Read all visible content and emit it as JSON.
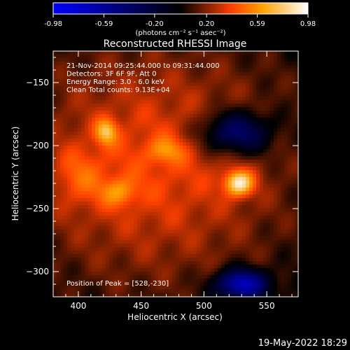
{
  "colorbar": {
    "ticks": [
      "-0.98",
      "-0.59",
      "-0.20",
      "0.20",
      "0.59",
      "0.98"
    ],
    "tick_values": [
      -0.98,
      -0.59,
      -0.2,
      0.2,
      0.59,
      0.98
    ],
    "range": [
      -0.98,
      0.98
    ],
    "unit_label": "(photons cm⁻² s⁻¹ asec⁻²)",
    "colors": [
      "#0000ff",
      "#000000",
      "#ff4000",
      "#ffa000",
      "#ffffff"
    ]
  },
  "chart_data": {
    "type": "heatmap",
    "title": "Reconstructed RHESSI Image",
    "xlabel": "Heliocentric X (arcsec)",
    "ylabel": "Heliocentric Y (arcsec)",
    "xlim": [
      380,
      575
    ],
    "ylim": [
      -320,
      -125
    ],
    "x_ticks": [
      400,
      450,
      500,
      550
    ],
    "y_ticks": [
      -150,
      -200,
      -250,
      -300
    ],
    "x_tick_labels": [
      "400",
      "450",
      "500",
      "550"
    ],
    "y_tick_labels": [
      "−150",
      "−200",
      "−250",
      "−300"
    ],
    "annotations": [
      "21-Nov-2014 09:25:44.000 to 09:31:44.000",
      "Detectors: 3F 6F 9F, Att 0",
      "Energy Range: 3.0 - 6.0 keV",
      "Clean    Total counts: 9.13E+04"
    ],
    "peak_label": "Position of Peak = [528,-230]",
    "peak": [
      528,
      -230
    ],
    "sources": [
      {
        "x": 528,
        "y": -230,
        "value": 0.98,
        "sx": 8,
        "sy": 7
      },
      {
        "x": 422,
        "y": -189,
        "value": 0.75,
        "sx": 6,
        "sy": 7
      },
      {
        "x": 470,
        "y": -204,
        "value": 0.55,
        "sx": 10,
        "sy": 7
      },
      {
        "x": 432,
        "y": -237,
        "value": 0.58,
        "sx": 10,
        "sy": 8
      },
      {
        "x": 400,
        "y": -225,
        "value": 0.5,
        "sx": 14,
        "sy": 16
      }
    ],
    "dark_regions": [
      {
        "x": 525,
        "y": -190,
        "value": -0.4,
        "sx": 20,
        "sy": 12
      },
      {
        "x": 530,
        "y": -310,
        "value": -0.6,
        "sx": 14,
        "sy": 8
      }
    ]
  },
  "footer": {
    "timestamp": "19-May-2022 18:29"
  }
}
